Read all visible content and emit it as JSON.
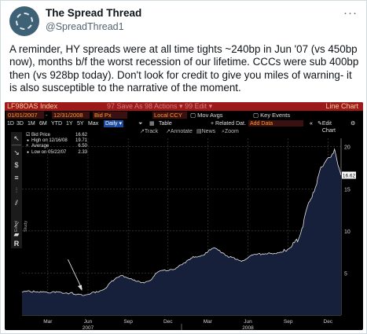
{
  "tweet": {
    "author_name": "The Spread Thread",
    "author_handle": "@SpreadThread1",
    "more": "···",
    "text": "A reminder, HY spreads were at all time tights ~240bp in Jun '07 (vs 450bp now), months b/f the worst recession of our lifetime. CCCs were sub 400bp then (vs 928bp today). Don't look for credit to give you miles of warning- it is also susceptible to the narrative of the moment."
  },
  "terminal": {
    "ticker": "LF98OAS Index",
    "menu_hint": "97 Save As  98 Actions ▾  99 Edit ▾",
    "window_title": "Line Chart",
    "start_date": "01/01/2007",
    "end_date": "12/31/2008",
    "field": "Bid Px",
    "currency": "Local CCY",
    "mov_avgs": "Mov Avgs",
    "key_events": "Key Events",
    "periods": [
      "1D",
      "3D",
      "1M",
      "6M",
      "YTD",
      "1Y",
      "5Y",
      "Max"
    ],
    "frequency": "Daily ▾",
    "table_label": "Table",
    "related_data": "+ Related Dat.",
    "add_data": "Add Data",
    "edit_chart": "Edit Chart",
    "subtools": [
      "Track",
      "Annotate",
      "News",
      "Zoom"
    ],
    "legend": {
      "series": "Bid Price",
      "series_value": "16.62",
      "high_label": "High on 12/16/08",
      "high_value": "19.71",
      "avg_label": "Average",
      "avg_value": "6.50",
      "low_label": "Low on 05/22/07",
      "low_value": "2.33"
    },
    "last_value_label": "16.62",
    "toolbar_label": "Event Study"
  },
  "chart_data": {
    "type": "area",
    "title": "",
    "xlabel": "",
    "ylabel": "",
    "ylim": [
      0,
      21
    ],
    "y_ticks": [
      5,
      10,
      15,
      20
    ],
    "x_ticks": [
      "Mar",
      "Jun",
      "Sep",
      "Dec",
      "Mar",
      "Jun",
      "Sep",
      "Dec"
    ],
    "year_labels": [
      "2007",
      "2008"
    ],
    "colors": {
      "fill": "#16203a",
      "line": "#e8e8e8",
      "grid": "#444444",
      "last_value_bg": "#ffffff"
    },
    "series": [
      {
        "name": "Bid Price",
        "x": [
          "2007-01-01",
          "2007-01-20",
          "2007-02-10",
          "2007-02-28",
          "2007-03-15",
          "2007-04-01",
          "2007-04-20",
          "2007-05-10",
          "2007-05-22",
          "2007-06-05",
          "2007-06-20",
          "2007-07-05",
          "2007-07-15",
          "2007-07-26",
          "2007-08-10",
          "2007-08-20",
          "2007-09-05",
          "2007-09-20",
          "2007-10-05",
          "2007-10-20",
          "2007-11-05",
          "2007-11-20",
          "2007-12-05",
          "2007-12-20",
          "2008-01-10",
          "2008-01-25",
          "2008-02-10",
          "2008-02-28",
          "2008-03-10",
          "2008-03-17",
          "2008-04-01",
          "2008-04-20",
          "2008-05-05",
          "2008-05-20",
          "2008-06-05",
          "2008-06-20",
          "2008-07-05",
          "2008-07-20",
          "2008-08-05",
          "2008-08-20",
          "2008-09-05",
          "2008-09-15",
          "2008-09-25",
          "2008-10-05",
          "2008-10-10",
          "2008-10-20",
          "2008-10-28",
          "2008-11-05",
          "2008-11-15",
          "2008-11-25",
          "2008-12-05",
          "2008-12-16",
          "2008-12-24",
          "2008-12-31"
        ],
        "values": [
          2.7,
          2.8,
          2.7,
          2.7,
          2.8,
          2.7,
          2.6,
          2.5,
          2.33,
          2.5,
          2.8,
          3.0,
          3.4,
          4.1,
          4.5,
          4.7,
          4.3,
          4.0,
          3.9,
          4.1,
          5.0,
          5.3,
          5.4,
          5.6,
          6.2,
          6.8,
          7.0,
          7.4,
          7.9,
          8.0,
          7.4,
          6.9,
          6.6,
          6.5,
          7.0,
          7.2,
          7.3,
          7.4,
          7.3,
          7.5,
          8.0,
          8.6,
          9.1,
          10.5,
          12.0,
          13.5,
          14.6,
          15.5,
          17.6,
          18.2,
          18.7,
          19.71,
          17.8,
          16.62
        ]
      }
    ]
  }
}
